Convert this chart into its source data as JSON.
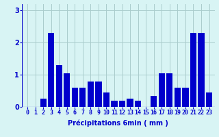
{
  "categories": [
    0,
    1,
    2,
    3,
    4,
    5,
    6,
    7,
    8,
    9,
    10,
    11,
    12,
    13,
    14,
    15,
    16,
    17,
    18,
    19,
    20,
    21,
    22,
    23
  ],
  "values": [
    0.0,
    0.0,
    0.25,
    2.3,
    1.3,
    1.05,
    0.6,
    0.6,
    0.8,
    0.8,
    0.45,
    0.2,
    0.2,
    0.25,
    0.2,
    0.0,
    0.35,
    1.05,
    1.05,
    0.6,
    0.6,
    2.3,
    2.3,
    0.45
  ],
  "bar_color": "#0000cc",
  "background_color": "#d8f4f4",
  "grid_color": "#aacccc",
  "xlabel": "Précipitations 6min ( mm )",
  "ylim": [
    0,
    3.2
  ],
  "yticks": [
    0,
    1,
    2,
    3
  ],
  "tick_color": "#0000cc",
  "label_color": "#0000cc",
  "tick_fontsize": 6,
  "xlabel_fontsize": 7
}
